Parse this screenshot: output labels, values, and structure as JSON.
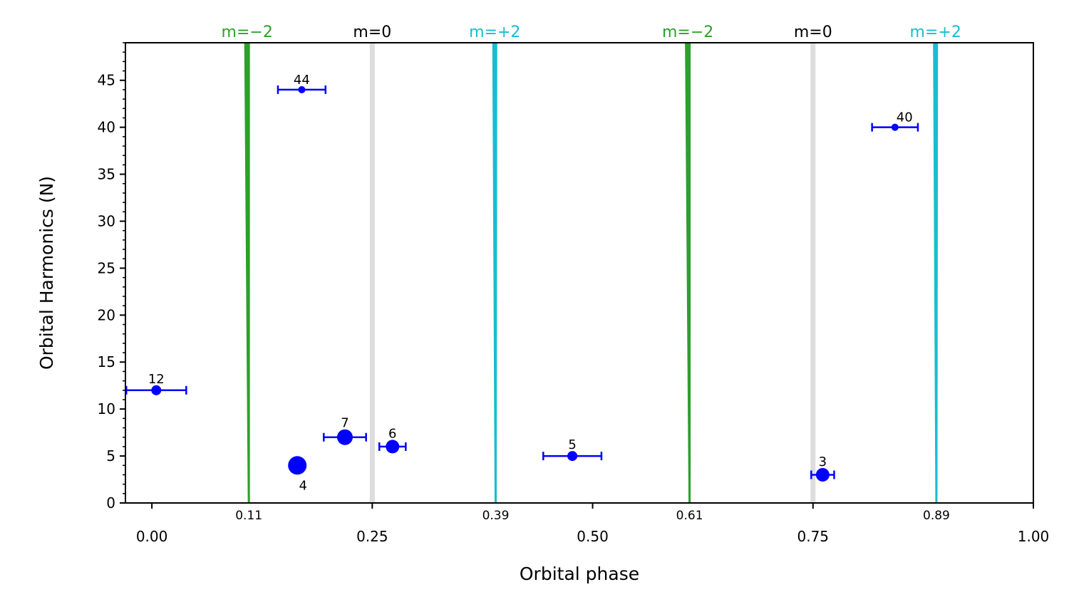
{
  "chart_data": {
    "type": "scatter",
    "xlabel": "Orbital phase",
    "ylabel": "Orbital Harmonics (N)",
    "xlim": [
      -0.03,
      1.0
    ],
    "ylim": [
      0,
      49
    ],
    "x_ticks": [
      {
        "value": 0.0,
        "label": "0.00"
      },
      {
        "value": 0.25,
        "label": "0.25"
      },
      {
        "value": 0.5,
        "label": "0.50"
      },
      {
        "value": 0.75,
        "label": "0.75"
      },
      {
        "value": 1.0,
        "label": "1.00"
      }
    ],
    "y_ticks": [
      {
        "value": 0,
        "label": "0"
      },
      {
        "value": 5,
        "label": "5"
      },
      {
        "value": 10,
        "label": "10"
      },
      {
        "value": 15,
        "label": "15"
      },
      {
        "value": 20,
        "label": "20"
      },
      {
        "value": 25,
        "label": "25"
      },
      {
        "value": 30,
        "label": "30"
      },
      {
        "value": 35,
        "label": "35"
      },
      {
        "value": 40,
        "label": "40"
      },
      {
        "value": 45,
        "label": "45"
      }
    ],
    "y_minor_step": 1,
    "extra_x_labels": [
      {
        "value": 0.11,
        "label": "0.11"
      },
      {
        "value": 0.39,
        "label": "0.39"
      },
      {
        "value": 0.61,
        "label": "0.61"
      },
      {
        "value": 0.89,
        "label": "0.89"
      }
    ],
    "mode_lines": [
      {
        "label": "m=−2",
        "x_bottom": 0.11,
        "x_top": 0.108,
        "color": "#2ca02c",
        "width_bottom": 3,
        "width_top": 8
      },
      {
        "label": "m=0",
        "x_bottom": 0.25,
        "x_top": 0.25,
        "color": "#dddddd",
        "width_bottom": 7,
        "width_top": 7
      },
      {
        "label": "m=+2",
        "x_bottom": 0.39,
        "x_top": 0.389,
        "color": "#17becf",
        "width_bottom": 3,
        "width_top": 7
      },
      {
        "label": "m=−2",
        "x_bottom": 0.61,
        "x_top": 0.608,
        "color": "#2ca02c",
        "width_bottom": 3,
        "width_top": 8
      },
      {
        "label": "m=0",
        "x_bottom": 0.75,
        "x_top": 0.75,
        "color": "#dddddd",
        "width_bottom": 7,
        "width_top": 7
      },
      {
        "label": "m=+2",
        "x_bottom": 0.89,
        "x_top": 0.889,
        "color": "#17becf",
        "width_bottom": 3,
        "width_top": 7
      }
    ],
    "points": [
      {
        "label": "12",
        "x": 0.005,
        "y": 12,
        "xerr": 0.034,
        "label_pos": "above",
        "size": "small"
      },
      {
        "label": "4",
        "x": 0.165,
        "y": 4,
        "xerr": 0.0,
        "label_pos": "below",
        "size": "large"
      },
      {
        "label": "44",
        "x": 0.17,
        "y": 44,
        "xerr": 0.027,
        "label_pos": "above",
        "size": "tiny"
      },
      {
        "label": "7",
        "x": 0.219,
        "y": 7,
        "xerr": 0.024,
        "label_pos": "above",
        "size": "medium"
      },
      {
        "label": "6",
        "x": 0.273,
        "y": 6,
        "xerr": 0.015,
        "label_pos": "above",
        "size": "medium-small"
      },
      {
        "label": "5",
        "x": 0.477,
        "y": 5,
        "xerr": 0.033,
        "label_pos": "above",
        "size": "small"
      },
      {
        "label": "3",
        "x": 0.761,
        "y": 3,
        "xerr": 0.013,
        "label_pos": "above",
        "size": "medium-small"
      },
      {
        "label": "40",
        "x": 0.843,
        "y": 40,
        "xerr": 0.026,
        "label_pos": "above-right",
        "size": "tiny"
      }
    ],
    "point_color": "#0000ff"
  }
}
